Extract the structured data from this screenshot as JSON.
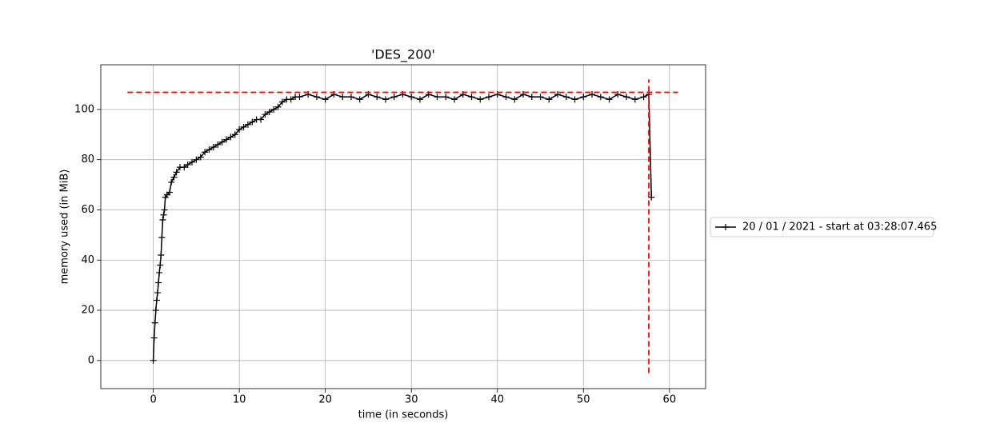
{
  "chart_data": {
    "type": "line",
    "title": "'DES_200'",
    "x_label": "time (in seconds)",
    "y_label": "memory used (in MiB)",
    "x": [
      0,
      0.1,
      0.2,
      0.3,
      0.4,
      0.5,
      0.6,
      0.7,
      0.8,
      0.9,
      1.0,
      1.1,
      1.2,
      1.3,
      1.4,
      1.6,
      1.9,
      2.1,
      2.4,
      2.7,
      3.1,
      3.6,
      4.0,
      4.5,
      5.0,
      5.5,
      6.0,
      6.5,
      7.0,
      7.5,
      8.0,
      8.5,
      9.0,
      9.5,
      10.0,
      10.5,
      11.0,
      11.5,
      12.0,
      12.5,
      13.0,
      13.5,
      14.0,
      14.5,
      15.0,
      15.5,
      16.0,
      16.5,
      17,
      18,
      19,
      20,
      21,
      22,
      23,
      24,
      25,
      26,
      27,
      28,
      29,
      30,
      31,
      32,
      33,
      34,
      35,
      36,
      37,
      38,
      39,
      40,
      41,
      42,
      43,
      44,
      45,
      46,
      47,
      48,
      49,
      50,
      51,
      52,
      53,
      54,
      55,
      56,
      57,
      57.6,
      57.9
    ],
    "series": [
      {
        "name": "20 / 01 / 2021 - start at 03:28:07.465",
        "color": "#000000",
        "marker": "+",
        "values": [
          0,
          9,
          15,
          20,
          24,
          27,
          31,
          35,
          38,
          42,
          49,
          56,
          58,
          60,
          65,
          66,
          67,
          71,
          73,
          75,
          77,
          77,
          78,
          79,
          80,
          81,
          83,
          84,
          85,
          86,
          87,
          88,
          89,
          90,
          92,
          93,
          94,
          95,
          96,
          96,
          98,
          99,
          100,
          101,
          103,
          104,
          104,
          105,
          105,
          106,
          105,
          104,
          106,
          105,
          105,
          104,
          106,
          105,
          104,
          105,
          106,
          105,
          104,
          106,
          105,
          105,
          104,
          106,
          105,
          104,
          105,
          106,
          105,
          104,
          106,
          105,
          105,
          104,
          106,
          105,
          104,
          105,
          106,
          105,
          104,
          106,
          105,
          104,
          105,
          106,
          65
        ]
      }
    ],
    "reference_lines": [
      {
        "axis": "y",
        "value": 106.8,
        "from": -3,
        "to": 61,
        "color": "#ff0000"
      },
      {
        "axis": "x",
        "value": 57.6,
        "from": -5,
        "to": 112,
        "color": "#ff0000"
      }
    ],
    "xlim": [
      -6.1,
      64.2
    ],
    "ylim": [
      -11.2,
      117.8
    ],
    "xticks": [
      0,
      10,
      20,
      30,
      40,
      50,
      60
    ],
    "yticks": [
      0,
      20,
      40,
      60,
      80,
      100
    ],
    "grid": true,
    "legend": "right"
  }
}
